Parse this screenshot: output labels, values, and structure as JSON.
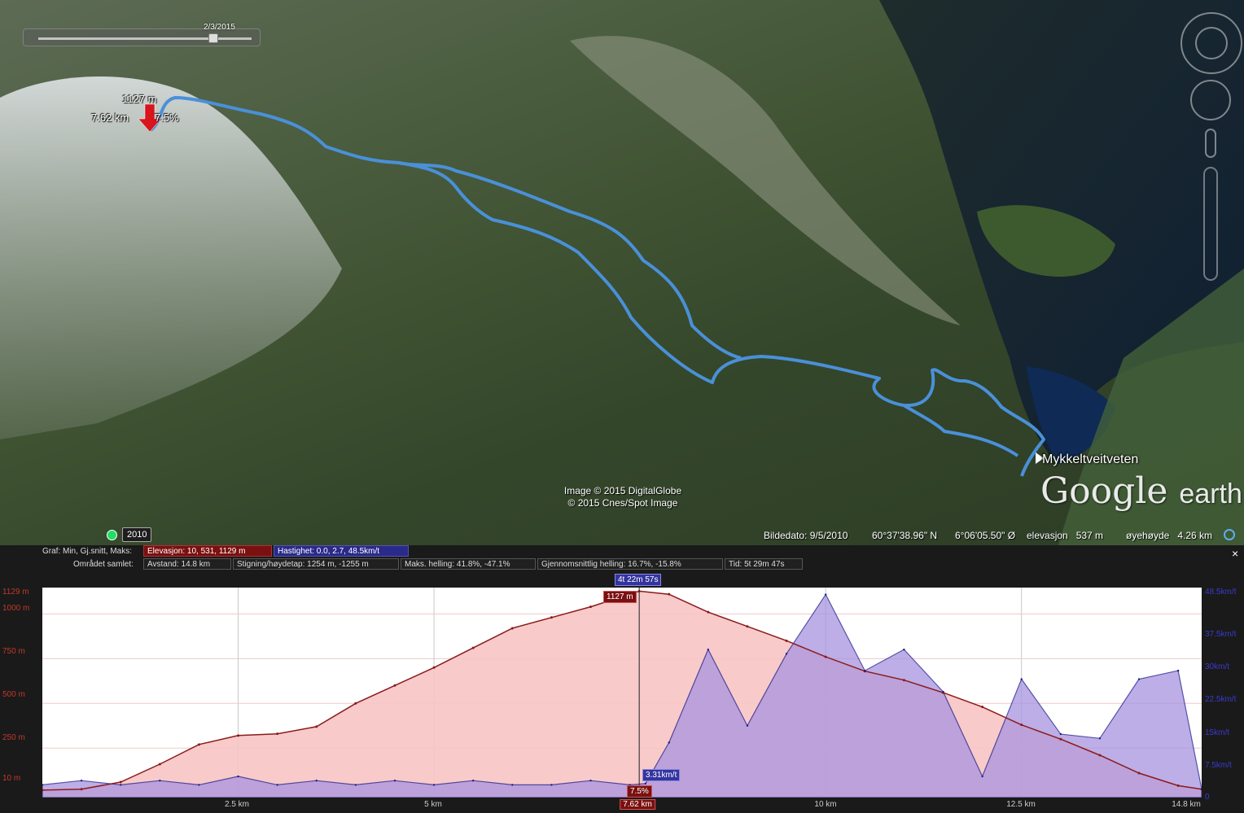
{
  "map": {
    "time_slider": {
      "date": "2/3/2015"
    },
    "peak_marker": {
      "elevation": "1127 m",
      "distance": "7.62 km",
      "grade": "7.5%"
    },
    "copyright": [
      "Image © 2015 DigitalGlobe",
      "© 2015 Cnes/Spot Image"
    ],
    "place_label": "Mykkeltveitveten",
    "logo": {
      "google": "Google",
      "earth": "earth"
    },
    "historical_year": "2010",
    "status": {
      "image_date": "Bildedato: 9/5/2010",
      "latitude": "60°37'38.96\" N",
      "longitude": "6°06'05.50\" Ø",
      "elevation": "elevasjon   537 m",
      "eye_altitude": "øyehøyde   4.26 km"
    },
    "icons": [
      "look-around-icon",
      "move-icon",
      "street-view-icon",
      "zoom-slider-icon",
      "clock-icon",
      "compass-icon"
    ]
  },
  "profile": {
    "close": "×",
    "row1_label": "Graf: Min, Gj.snitt, Maks:",
    "elevation_chip": "Elevasjon: 10, 531, 1129 m",
    "speed_chip": "Hastighet: 0.0, 2.7, 48.5km/t",
    "row2_label": "Området samlet:",
    "summary": [
      "Avstand: 14.8 km",
      "Stigning/høydetap: 1254 m, -1255 m",
      "Maks. helling: 41.8%, -47.1%",
      "Gjennomsnittlig helling: 16.7%, -15.8%",
      "Tid: 5t 29m 47s"
    ],
    "left_ticks": [
      "1129 m",
      "1000 m",
      "750 m",
      "500 m",
      "250 m",
      "10 m"
    ],
    "right_ticks": [
      "48.5km/t",
      "37.5km/t",
      "30km/t",
      "22.5km/t",
      "15km/t",
      "7.5km/t",
      "0"
    ],
    "x_ticks": [
      "2.5 km",
      "5 km",
      "7.62 km",
      "10 km",
      "12.5 km",
      "14.8 km"
    ],
    "cursor_flags": {
      "time": "4t 22m 57s",
      "elevation": "1127 m",
      "speed": "3.31km/t",
      "grade": "7.5%"
    },
    "colors": {
      "elevation": "#8b1a1a",
      "elevation_fill": "#f7c4c4",
      "speed": "#1a1a8b",
      "speed_fill": "#a894e0",
      "accent": "#5ab0e8"
    }
  },
  "chart_data": {
    "type": "area",
    "xlabel": "",
    "ylabel": "",
    "xlim": [
      0,
      14.8
    ],
    "x_ticks": [
      2.5,
      5,
      7.62,
      10,
      12.5,
      14.8
    ],
    "y_left_lim": [
      10,
      1129
    ],
    "y_right_lim": [
      0,
      48.5
    ],
    "series": [
      {
        "name": "Elevasjon",
        "axis": "left",
        "x": [
          0,
          0.5,
          1,
          1.5,
          2,
          2.5,
          3,
          3.5,
          4,
          4.5,
          5,
          5.5,
          6,
          6.5,
          7,
          7.5,
          7.62,
          8,
          8.5,
          9,
          9.5,
          10,
          10.5,
          11,
          11.5,
          12,
          12.5,
          13,
          13.5,
          14,
          14.5,
          14.8
        ],
        "values": [
          15,
          20,
          60,
          160,
          270,
          320,
          330,
          370,
          500,
          600,
          700,
          810,
          920,
          980,
          1040,
          1110,
          1127,
          1110,
          1010,
          930,
          850,
          760,
          680,
          630,
          560,
          480,
          380,
          300,
          210,
          110,
          40,
          20
        ]
      },
      {
        "name": "Hastighet",
        "axis": "right",
        "x": [
          0,
          0.5,
          1,
          1.5,
          2,
          2.5,
          3,
          3.5,
          4,
          4.5,
          5,
          5.5,
          6,
          6.5,
          7,
          7.5,
          7.7,
          8,
          8.5,
          9,
          9.5,
          10,
          10.5,
          11,
          11.5,
          12,
          12.5,
          13,
          13.5,
          14,
          14.5,
          14.8
        ],
        "values": [
          3,
          4,
          3,
          4,
          3,
          5,
          3,
          4,
          3,
          4,
          3,
          4,
          3,
          3,
          4,
          3,
          3.3,
          13,
          35,
          17,
          34,
          48,
          30,
          35,
          25,
          5,
          28,
          15,
          14,
          28,
          30,
          2
        ]
      }
    ]
  }
}
